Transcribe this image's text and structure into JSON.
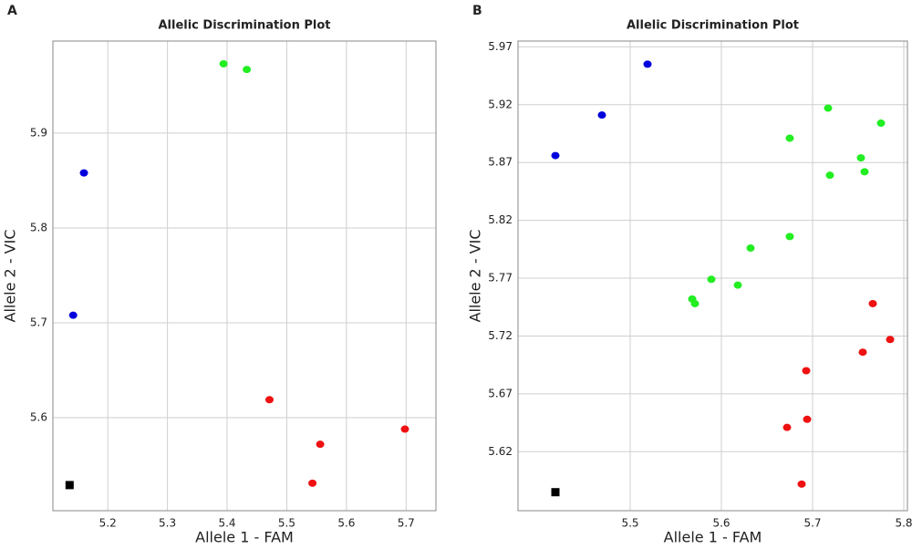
{
  "chart_data": [
    {
      "type": "scatter",
      "panel_label": "A",
      "title": "Allelic Discrimination Plot",
      "x_label": "Allele 1 - FAM",
      "y_label": "Allele 2 - VIC",
      "xlim": [
        5.108,
        5.75
      ],
      "ylim": [
        5.502,
        5.997
      ],
      "xticks": [
        5.2,
        5.3,
        5.4,
        5.5,
        5.6,
        5.7
      ],
      "yticks": [
        5.6,
        5.7,
        5.8,
        5.9
      ],
      "grid": true,
      "series": [
        {
          "color": "#0000dd",
          "marker": "circle",
          "x": [
            5.16,
            5.142
          ],
          "values": [
            5.858,
            5.708
          ]
        },
        {
          "color": "#22ee22",
          "marker": "circle",
          "x": [
            5.394,
            5.433
          ],
          "values": [
            5.973,
            5.967
          ]
        },
        {
          "color": "#ee1111",
          "marker": "circle",
          "x": [
            5.471,
            5.556,
            5.543,
            5.698
          ],
          "values": [
            5.619,
            5.572,
            5.531,
            5.588
          ]
        },
        {
          "color": "#000000",
          "marker": "square",
          "x": [
            5.136
          ],
          "values": [
            5.529
          ]
        }
      ]
    },
    {
      "type": "scatter",
      "panel_label": "B",
      "title": "Allelic Discrimination Plot",
      "x_label": "Allele 1 - FAM",
      "y_label": "Allele 2 - VIC",
      "xlim": [
        5.377,
        5.804
      ],
      "ylim": [
        5.569,
        5.975
      ],
      "xticks": [
        5.5,
        5.6,
        5.7,
        5.8
      ],
      "yticks": [
        5.62,
        5.67,
        5.72,
        5.77,
        5.82,
        5.87,
        5.92,
        5.97
      ],
      "grid": true,
      "series": [
        {
          "color": "#0000dd",
          "marker": "circle",
          "x": [
            5.418,
            5.469,
            5.519
          ],
          "values": [
            5.876,
            5.911,
            5.955
          ]
        },
        {
          "color": "#22ee22",
          "marker": "circle",
          "x": [
            5.717,
            5.775,
            5.675,
            5.753,
            5.757,
            5.719,
            5.675,
            5.632,
            5.589,
            5.618,
            5.568,
            5.571
          ],
          "values": [
            5.917,
            5.904,
            5.891,
            5.874,
            5.862,
            5.859,
            5.806,
            5.796,
            5.769,
            5.764,
            5.752,
            5.748
          ]
        },
        {
          "color": "#ee1111",
          "marker": "circle",
          "x": [
            5.766,
            5.785,
            5.755,
            5.693,
            5.694,
            5.672,
            5.688
          ],
          "values": [
            5.748,
            5.717,
            5.706,
            5.69,
            5.648,
            5.641,
            5.592
          ]
        },
        {
          "color": "#000000",
          "marker": "square",
          "x": [
            5.418
          ],
          "values": [
            5.585
          ]
        }
      ]
    }
  ]
}
